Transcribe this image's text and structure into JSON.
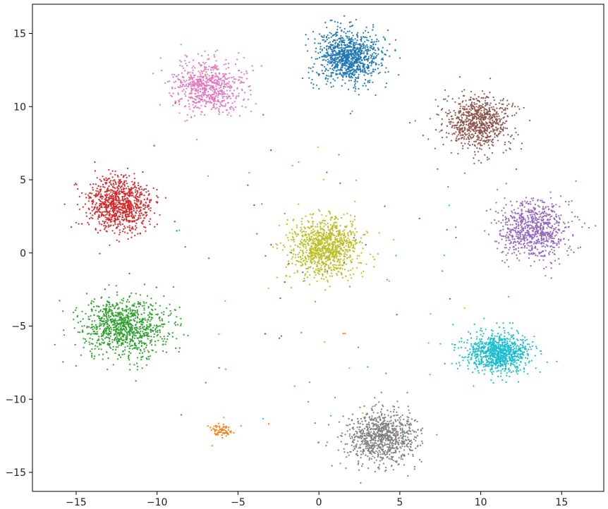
{
  "chart_data": {
    "type": "scatter",
    "title": "",
    "xlabel": "",
    "ylabel": "",
    "xlim": [
      -17.7,
      17.6
    ],
    "ylim": [
      -16.3,
      17.0
    ],
    "x_ticks": [
      -15,
      -10,
      -5,
      0,
      5,
      10,
      15
    ],
    "y_ticks": [
      -15,
      -10,
      -5,
      0,
      5,
      10,
      15
    ],
    "x_tick_labels": [
      "−15",
      "−10",
      "−5",
      "0",
      "5",
      "10",
      "15"
    ],
    "y_tick_labels": [
      "−15",
      "−10",
      "−5",
      "0",
      "5",
      "10",
      "15"
    ],
    "grid": false,
    "legend": "none",
    "marker_size_note": "small dots",
    "clusters": [
      {
        "color": "#1f77b4",
        "center": [
          1.8,
          13.4
        ],
        "spread": [
          1.0,
          0.9
        ],
        "points": 1000
      },
      {
        "color": "#e377c2",
        "center": [
          -6.8,
          11.3
        ],
        "spread": [
          1.1,
          0.9
        ],
        "points": 700
      },
      {
        "color": "#8c564b",
        "center": [
          9.9,
          8.9
        ],
        "spread": [
          1.0,
          0.9
        ],
        "points": 800
      },
      {
        "color": "#d62728",
        "center": [
          -12.3,
          3.3
        ],
        "spread": [
          1.0,
          0.9
        ],
        "points": 900
      },
      {
        "color": "#bcbd22",
        "center": [
          0.4,
          0.4
        ],
        "spread": [
          1.1,
          1.0
        ],
        "points": 1000
      },
      {
        "color": "#9467bd",
        "center": [
          13.3,
          1.6
        ],
        "spread": [
          1.0,
          1.0
        ],
        "points": 800
      },
      {
        "color": "#2ca02c",
        "center": [
          -12.0,
          -5.1
        ],
        "spread": [
          1.3,
          1.0
        ],
        "points": 1000
      },
      {
        "color": "#17becf",
        "center": [
          11.1,
          -6.8
        ],
        "spread": [
          1.0,
          0.7
        ],
        "points": 900
      },
      {
        "color": "#7f7f7f",
        "center": [
          3.9,
          -12.6
        ],
        "spread": [
          1.1,
          0.9
        ],
        "points": 900
      },
      {
        "color": "#ff7f0e",
        "center": [
          -6.0,
          -12.1
        ],
        "spread": [
          0.3,
          0.2
        ],
        "points": 70
      }
    ],
    "scattered_points": 160
  }
}
